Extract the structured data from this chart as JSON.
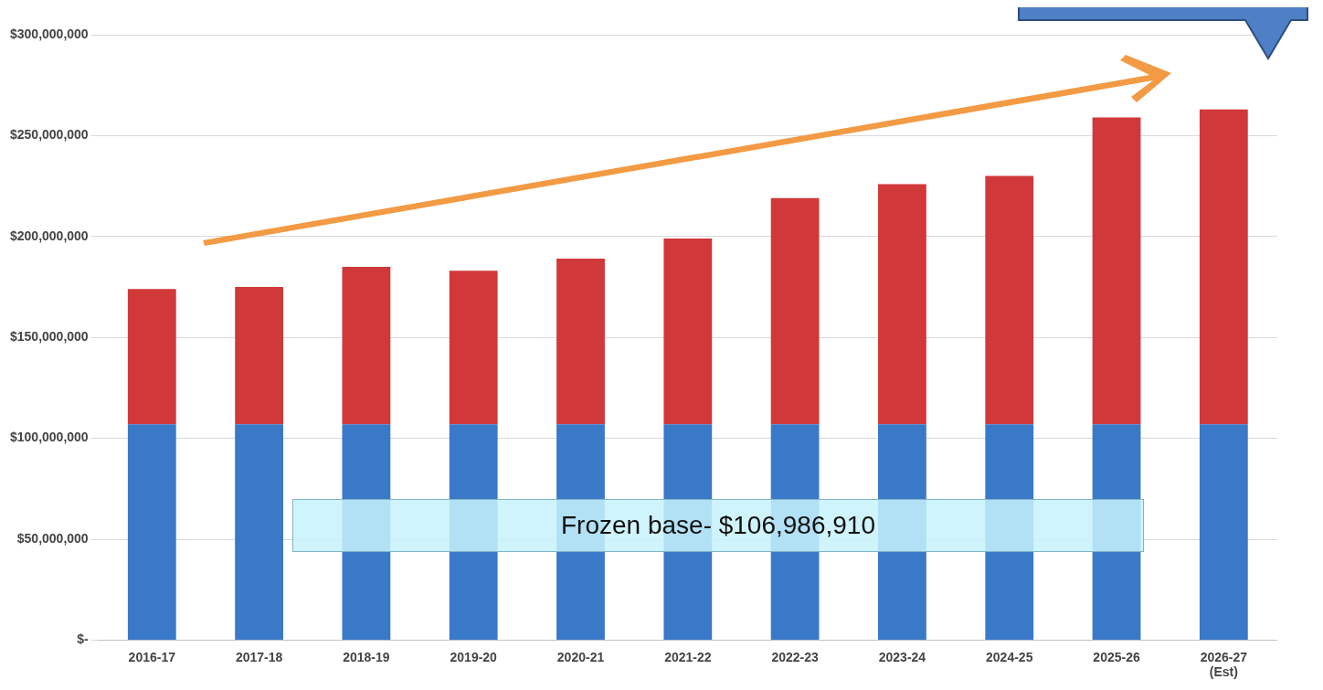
{
  "chart_data": {
    "type": "bar",
    "stacked": true,
    "categories": [
      "2016-17",
      "2017-18",
      "2018-19",
      "2019-20",
      "2020-21",
      "2021-22",
      "2022-23",
      "2023-24",
      "2024-25",
      "2025-26",
      "2026-27\n(Est)"
    ],
    "series": [
      {
        "color": "#3a78c8",
        "values": [
          107000000,
          107000000,
          107000000,
          107000000,
          107000000,
          107000000,
          107000000,
          107000000,
          107000000,
          107000000,
          107000000
        ]
      },
      {
        "color": "#d0383a",
        "values": [
          67000000,
          68000000,
          78000000,
          76000000,
          82000000,
          92000000,
          112000000,
          119000000,
          123000000,
          152000000,
          156000000
        ]
      }
    ],
    "ylim": [
      0,
      300000000
    ],
    "yticks": [
      {
        "value": 0,
        "label": "$-"
      },
      {
        "value": 50000000,
        "label": "$50,000,000"
      },
      {
        "value": 100000000,
        "label": "$100,000,000"
      },
      {
        "value": 150000000,
        "label": "$150,000,000"
      },
      {
        "value": 200000000,
        "label": "$200,000,000"
      },
      {
        "value": 250000000,
        "label": "$250,000,000"
      },
      {
        "value": 300000000,
        "label": "$300,000,000"
      }
    ],
    "grid": "y",
    "legend": false,
    "annotations": [
      "Frozen base- $106,986,910"
    ]
  }
}
